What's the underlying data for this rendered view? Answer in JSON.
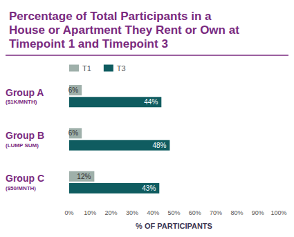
{
  "chart_data": {
    "type": "bar",
    "orientation": "horizontal",
    "title": "Percentage of Total Participants in a House or Apartment They Rent or Own at Timepoint 1 and Timepoint 3",
    "categories": [
      "Group A\n($1K/MNTH)",
      "Group B\n(LUMP SUM)",
      "Group C\n($50/MNTH)"
    ],
    "series": [
      {
        "name": "T1",
        "color": "#9fb0aa",
        "values": [
          6,
          6,
          12
        ],
        "value_labels": [
          "6%",
          "6%",
          "12%"
        ]
      },
      {
        "name": "T3",
        "color": "#0f5c60",
        "values": [
          44,
          48,
          43
        ],
        "value_labels": [
          "44%",
          "48%",
          "43%"
        ]
      }
    ],
    "xlabel": "% OF PARTICIPANTS",
    "xlim": [
      0,
      100
    ],
    "xticks": [
      {
        "value": 0,
        "label": "0%"
      },
      {
        "value": 10,
        "label": "10%"
      },
      {
        "value": 20,
        "label": "20%"
      },
      {
        "value": 30,
        "label": "30%"
      },
      {
        "value": 40,
        "label": "40%"
      },
      {
        "value": 50,
        "label": "50%"
      },
      {
        "value": 60,
        "label": "60%"
      },
      {
        "value": 70,
        "label": "70%"
      },
      {
        "value": 80,
        "label": "80%"
      },
      {
        "value": 90,
        "label": "90%"
      },
      {
        "value": 100,
        "label": "100%"
      }
    ],
    "data_labels": true,
    "grid": false,
    "legend": "top"
  }
}
